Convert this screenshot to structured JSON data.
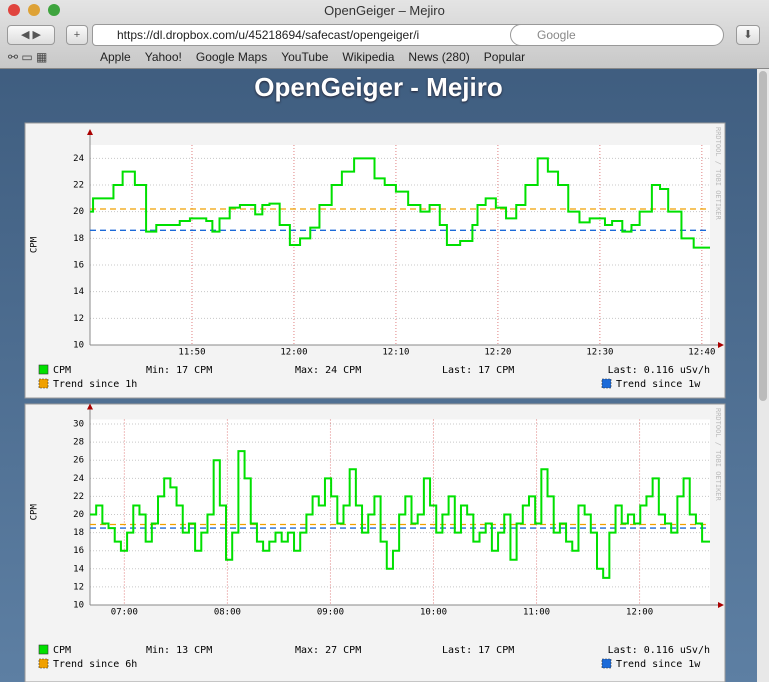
{
  "browser": {
    "window_title": "OpenGeiger – Mejiro",
    "url": "https://dl.dropbox.com/u/45218694/safecast/opengeiger/i",
    "search_placeholder": "Google",
    "bookmarks": [
      "Apple",
      "Yahoo!",
      "Google Maps",
      "YouTube",
      "Wikipedia",
      "News (280)",
      "Popular"
    ]
  },
  "page": {
    "heading": "OpenGeiger - Mejiro"
  },
  "chart_data": [
    {
      "type": "line",
      "step": true,
      "y_label": "CPM",
      "watermark": "RRDTOOL / TOBI OETIKER",
      "grid": true,
      "xlim": [
        700,
        760.8
      ],
      "xticks": [
        {
          "value": 710,
          "label": "11:50"
        },
        {
          "value": 720,
          "label": "12:00"
        },
        {
          "value": 730,
          "label": "12:10"
        },
        {
          "value": 740,
          "label": "12:20"
        },
        {
          "value": 750,
          "label": "12:30"
        },
        {
          "value": 760,
          "label": "12:40"
        }
      ],
      "ylim": [
        10,
        25
      ],
      "yticks": [
        10,
        12,
        14,
        16,
        18,
        20,
        22,
        24
      ],
      "series": [
        {
          "name": "CPM",
          "color": "#00e000",
          "x": [
            700.0,
            700.3,
            702.3,
            703.2,
            704.4,
            705.5,
            706.5,
            707.6,
            708.8,
            709.8,
            711.4,
            712.0,
            712.7,
            713.7,
            714.7,
            716.2,
            716.9,
            717.6,
            718.6,
            719.6,
            720.6,
            721.6,
            722.5,
            723.7,
            724.7,
            725.9,
            727.9,
            728.9,
            730.0,
            731.2,
            732.4,
            733.3,
            734.3,
            735.0,
            736.3,
            737.5,
            738.0,
            738.8,
            739.8,
            740.8,
            741.8,
            742.7,
            743.9,
            744.9,
            745.9,
            746.9,
            748.0,
            749.0,
            750.5,
            751.2,
            752.2,
            753.1,
            753.9,
            755.1,
            755.9,
            756.7,
            758.0,
            759.2
          ],
          "values": [
            20,
            21,
            22,
            23,
            22,
            18.5,
            19,
            19,
            19.3,
            19.5,
            19.3,
            18.5,
            19.5,
            20.3,
            20.5,
            19.8,
            20.5,
            20.6,
            19,
            17.5,
            18,
            18.8,
            20.5,
            22,
            23,
            24,
            22.5,
            22,
            21.5,
            20.5,
            20,
            20.5,
            19,
            17.5,
            17.8,
            19,
            20.5,
            21,
            20.3,
            19.5,
            20.5,
            22,
            24,
            23,
            22,
            20,
            19.2,
            19.5,
            19,
            19.3,
            18.5,
            19,
            20,
            22,
            21.7,
            20,
            18,
            17.3
          ]
        }
      ],
      "trends": [
        {
          "name": "Trend since 1h",
          "color": "#f0a000",
          "value": 20.2
        },
        {
          "name": "Trend since 1w",
          "color": "#1c6ad8",
          "value": 18.6
        }
      ],
      "stats": {
        "min": "Min: 17 CPM",
        "max": "Max: 24 CPM",
        "last": "Last: 17 CPM",
        "last_dose": "Last: 0.116 uSv/h"
      }
    },
    {
      "type": "line",
      "step": true,
      "y_label": "CPM",
      "watermark": "RRDTOOL / TOBI OETIKER",
      "grid": true,
      "xlim": [
        400,
        761
      ],
      "xticks": [
        {
          "value": 420,
          "label": "07:00"
        },
        {
          "value": 480,
          "label": "08:00"
        },
        {
          "value": 540,
          "label": "09:00"
        },
        {
          "value": 600,
          "label": "10:00"
        },
        {
          "value": 660,
          "label": "11:00"
        },
        {
          "value": 720,
          "label": "12:00"
        }
      ],
      "ylim": [
        10,
        30.5
      ],
      "yticks": [
        10,
        12,
        14,
        16,
        18,
        20,
        22,
        24,
        26,
        28,
        30
      ],
      "series": [
        {
          "name": "CPM",
          "color": "#00e000",
          "x": [
            400,
            403.6,
            407.2,
            410.8,
            414.4,
            418,
            421.6,
            425.2,
            428.8,
            432.4,
            436,
            439.6,
            443.2,
            446.8,
            450.4,
            454,
            457.6,
            461.2,
            464.8,
            468.4,
            472,
            475.6,
            479.2,
            482.8,
            486.4,
            490,
            493.6,
            497.2,
            500.8,
            504.4,
            508,
            511.6,
            515.2,
            518.8,
            522.4,
            526,
            529.6,
            533.2,
            536.8,
            540.4,
            544,
            547.6,
            551.2,
            554.8,
            558.4,
            562,
            565.6,
            569.2,
            572.8,
            576.4,
            580,
            583.6,
            587.2,
            590.8,
            594.4,
            598,
            601.6,
            605.2,
            608.8,
            612.4,
            616,
            619.6,
            623.2,
            626.8,
            630.4,
            634,
            637.6,
            641.2,
            644.8,
            648.4,
            652,
            655.6,
            659.2,
            662.8,
            666.4,
            670,
            673.6,
            677.2,
            680.8,
            684.4,
            688,
            691.6,
            695.2,
            698.8,
            702.4,
            706,
            709.6,
            713.2,
            716.8,
            720.4,
            724,
            727.6,
            731.2,
            734.8,
            738.4,
            742,
            745.6,
            749.2,
            752.8,
            756.4
          ],
          "values": [
            20,
            21,
            19,
            18.5,
            17,
            16,
            18,
            21,
            20,
            17,
            19,
            22,
            24,
            23,
            21,
            18,
            19,
            16,
            18,
            20,
            26,
            21,
            15,
            18,
            27,
            24,
            19,
            17,
            16,
            17,
            18,
            17,
            18,
            16,
            18,
            20,
            22,
            21,
            24,
            22,
            19,
            21,
            25,
            21,
            18,
            20,
            22,
            17,
            14,
            16,
            20,
            22,
            19,
            20,
            24,
            21,
            18,
            20,
            22,
            18,
            21,
            20,
            17,
            18,
            19,
            16,
            18,
            20,
            15,
            19,
            21,
            22,
            19,
            25,
            22,
            18,
            19,
            17,
            16,
            21,
            20,
            18,
            14,
            13,
            18,
            21,
            19,
            20,
            19,
            21,
            22,
            24,
            20,
            19,
            18,
            22,
            24,
            20,
            19,
            17
          ]
        }
      ],
      "trends": [
        {
          "name": "Trend since 6h",
          "color": "#f0a000",
          "value": 18.9
        },
        {
          "name": "Trend since 1w",
          "color": "#1c6ad8",
          "value": 18.5
        }
      ],
      "stats": {
        "min": "Min: 13 CPM",
        "max": "Max: 27 CPM",
        "last": "Last: 17 CPM",
        "last_dose": "Last: 0.116 uSv/h"
      }
    }
  ]
}
